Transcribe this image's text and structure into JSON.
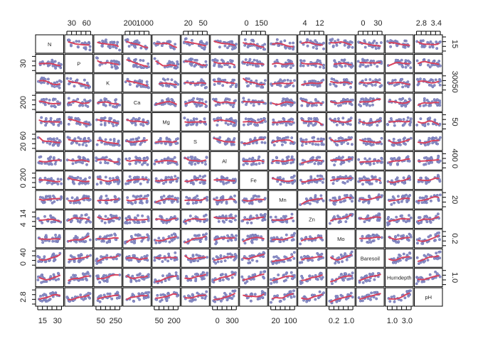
{
  "chart_data": {
    "type": "scatter",
    "variables": [
      "N",
      "P",
      "K",
      "Ca",
      "Mg",
      "S",
      "Al",
      "Fe",
      "Mn",
      "Zn",
      "Mo",
      "Baresoil",
      "Humdepth",
      "pH"
    ],
    "panel_type": "scatterplot matrix with loess smoothers",
    "colors": {
      "points": "#8b8fc7",
      "smoother": "#d9425d"
    },
    "ticks_top": [
      {
        "var": "P",
        "labels": [
          "30",
          "60"
        ]
      },
      {
        "var": "Ca",
        "labels": [
          "200",
          "1000"
        ]
      },
      {
        "var": "S",
        "labels": [
          "20",
          "50"
        ]
      },
      {
        "var": "Fe",
        "labels": [
          "0",
          "150"
        ]
      },
      {
        "var": "Zn",
        "labels": [
          "4",
          "12"
        ]
      },
      {
        "var": "Baresoil",
        "labels": [
          "0",
          "30"
        ]
      },
      {
        "var": "pH",
        "labels": [
          "2.8",
          "3.4"
        ]
      }
    ],
    "ticks_bottom": [
      {
        "var": "N",
        "labels": [
          "15",
          "30"
        ]
      },
      {
        "var": "K",
        "labels": [
          "50",
          "250"
        ]
      },
      {
        "var": "Mg",
        "labels": [
          "50",
          "200"
        ]
      },
      {
        "var": "Al",
        "labels": [
          "0",
          "300"
        ]
      },
      {
        "var": "Mn",
        "labels": [
          "20",
          "100"
        ]
      },
      {
        "var": "Mo",
        "labels": [
          "0.2",
          "1.0"
        ]
      },
      {
        "var": "Humdepth",
        "labels": [
          "1.0",
          "3.0"
        ]
      }
    ],
    "ticks_left": [
      {
        "var": "P",
        "labels": [
          "30"
        ]
      },
      {
        "var": "Ca",
        "labels": [
          "200"
        ]
      },
      {
        "var": "S",
        "labels": [
          "20",
          "60"
        ]
      },
      {
        "var": "Fe",
        "labels": [
          "0",
          "200"
        ]
      },
      {
        "var": "Zn",
        "labels": [
          "4",
          "14"
        ]
      },
      {
        "var": "Baresoil",
        "labels": [
          "0",
          "40"
        ]
      },
      {
        "var": "pH",
        "labels": [
          "2.8"
        ]
      }
    ],
    "ticks_right": [
      {
        "var": "N",
        "labels": [
          "15"
        ]
      },
      {
        "var": "K",
        "labels": [
          "50",
          "300"
        ]
      },
      {
        "var": "Mg",
        "labels": [
          "50"
        ]
      },
      {
        "var": "Al",
        "labels": [
          "0",
          "400"
        ]
      },
      {
        "var": "Mn",
        "labels": [
          "20"
        ]
      },
      {
        "var": "Mo",
        "labels": [
          "0.2"
        ]
      },
      {
        "var": "Humdepth",
        "labels": [
          "1.0"
        ]
      }
    ]
  }
}
